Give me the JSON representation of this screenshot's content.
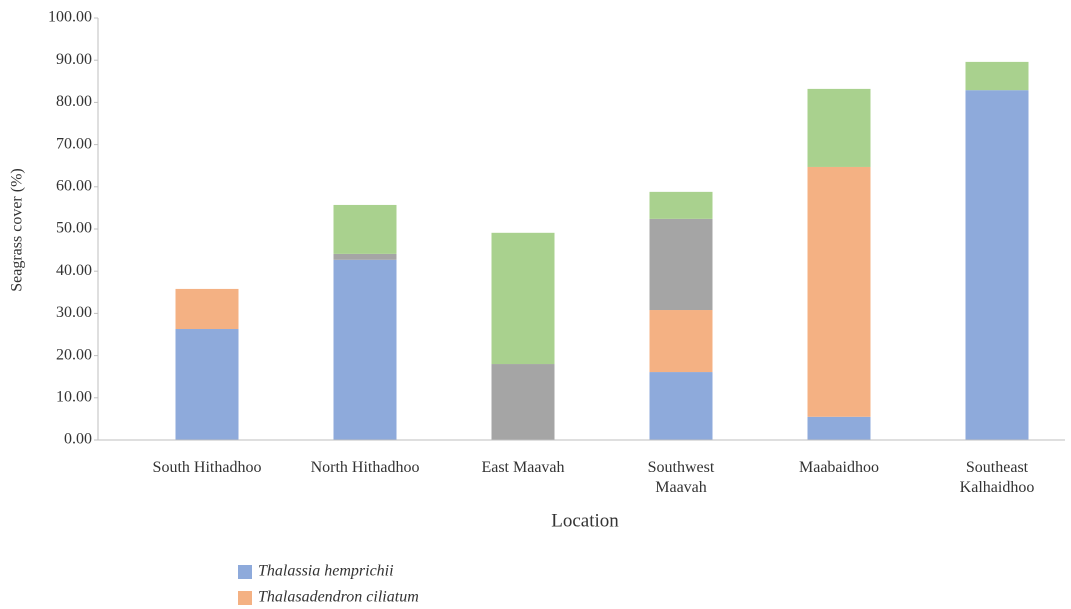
{
  "chart_data": {
    "type": "stacked_bar",
    "y_label": "Seagrass cover (%)",
    "x_label": "Location",
    "categories": [
      "South Hithadhoo",
      "North Hithadhoo",
      "East Maavah",
      "Southwest Maavah",
      "Maabaidhoo",
      "Southeast Kalhaidhoo"
    ],
    "series": [
      {
        "name": "Thalassia hemprichii",
        "color": "#8eaadb",
        "values": [
          26.3,
          42.7,
          0,
          16.1,
          5.5,
          82.9
        ]
      },
      {
        "name": "Thalasadendron ciliatum",
        "color": "#f4b183",
        "values": [
          9.5,
          0,
          0,
          14.7,
          59.2,
          0
        ]
      },
      {
        "color": "#a5a5a5",
        "values": [
          0,
          1.4,
          18.0,
          21.6,
          0,
          0
        ]
      },
      {
        "color": "#a9d18e",
        "values": [
          0,
          11.6,
          31.1,
          6.4,
          18.5,
          6.7
        ]
      }
    ],
    "ylim": [
      0,
      100
    ],
    "yticks": [
      {
        "value": 0,
        "label": "0.00"
      },
      {
        "value": 10,
        "label": "10.00"
      },
      {
        "value": 20,
        "label": "20.00"
      },
      {
        "value": 30,
        "label": "30.00"
      },
      {
        "value": 40,
        "label": "40.00"
      },
      {
        "value": 50,
        "label": "50.00"
      },
      {
        "value": 60,
        "label": "60.00"
      },
      {
        "value": 70,
        "label": "70.00"
      },
      {
        "value": 80,
        "label": "80.00"
      },
      {
        "value": 90,
        "label": "90.00"
      },
      {
        "value": 100,
        "label": "100.00"
      }
    ],
    "legend": "bottom-left"
  }
}
